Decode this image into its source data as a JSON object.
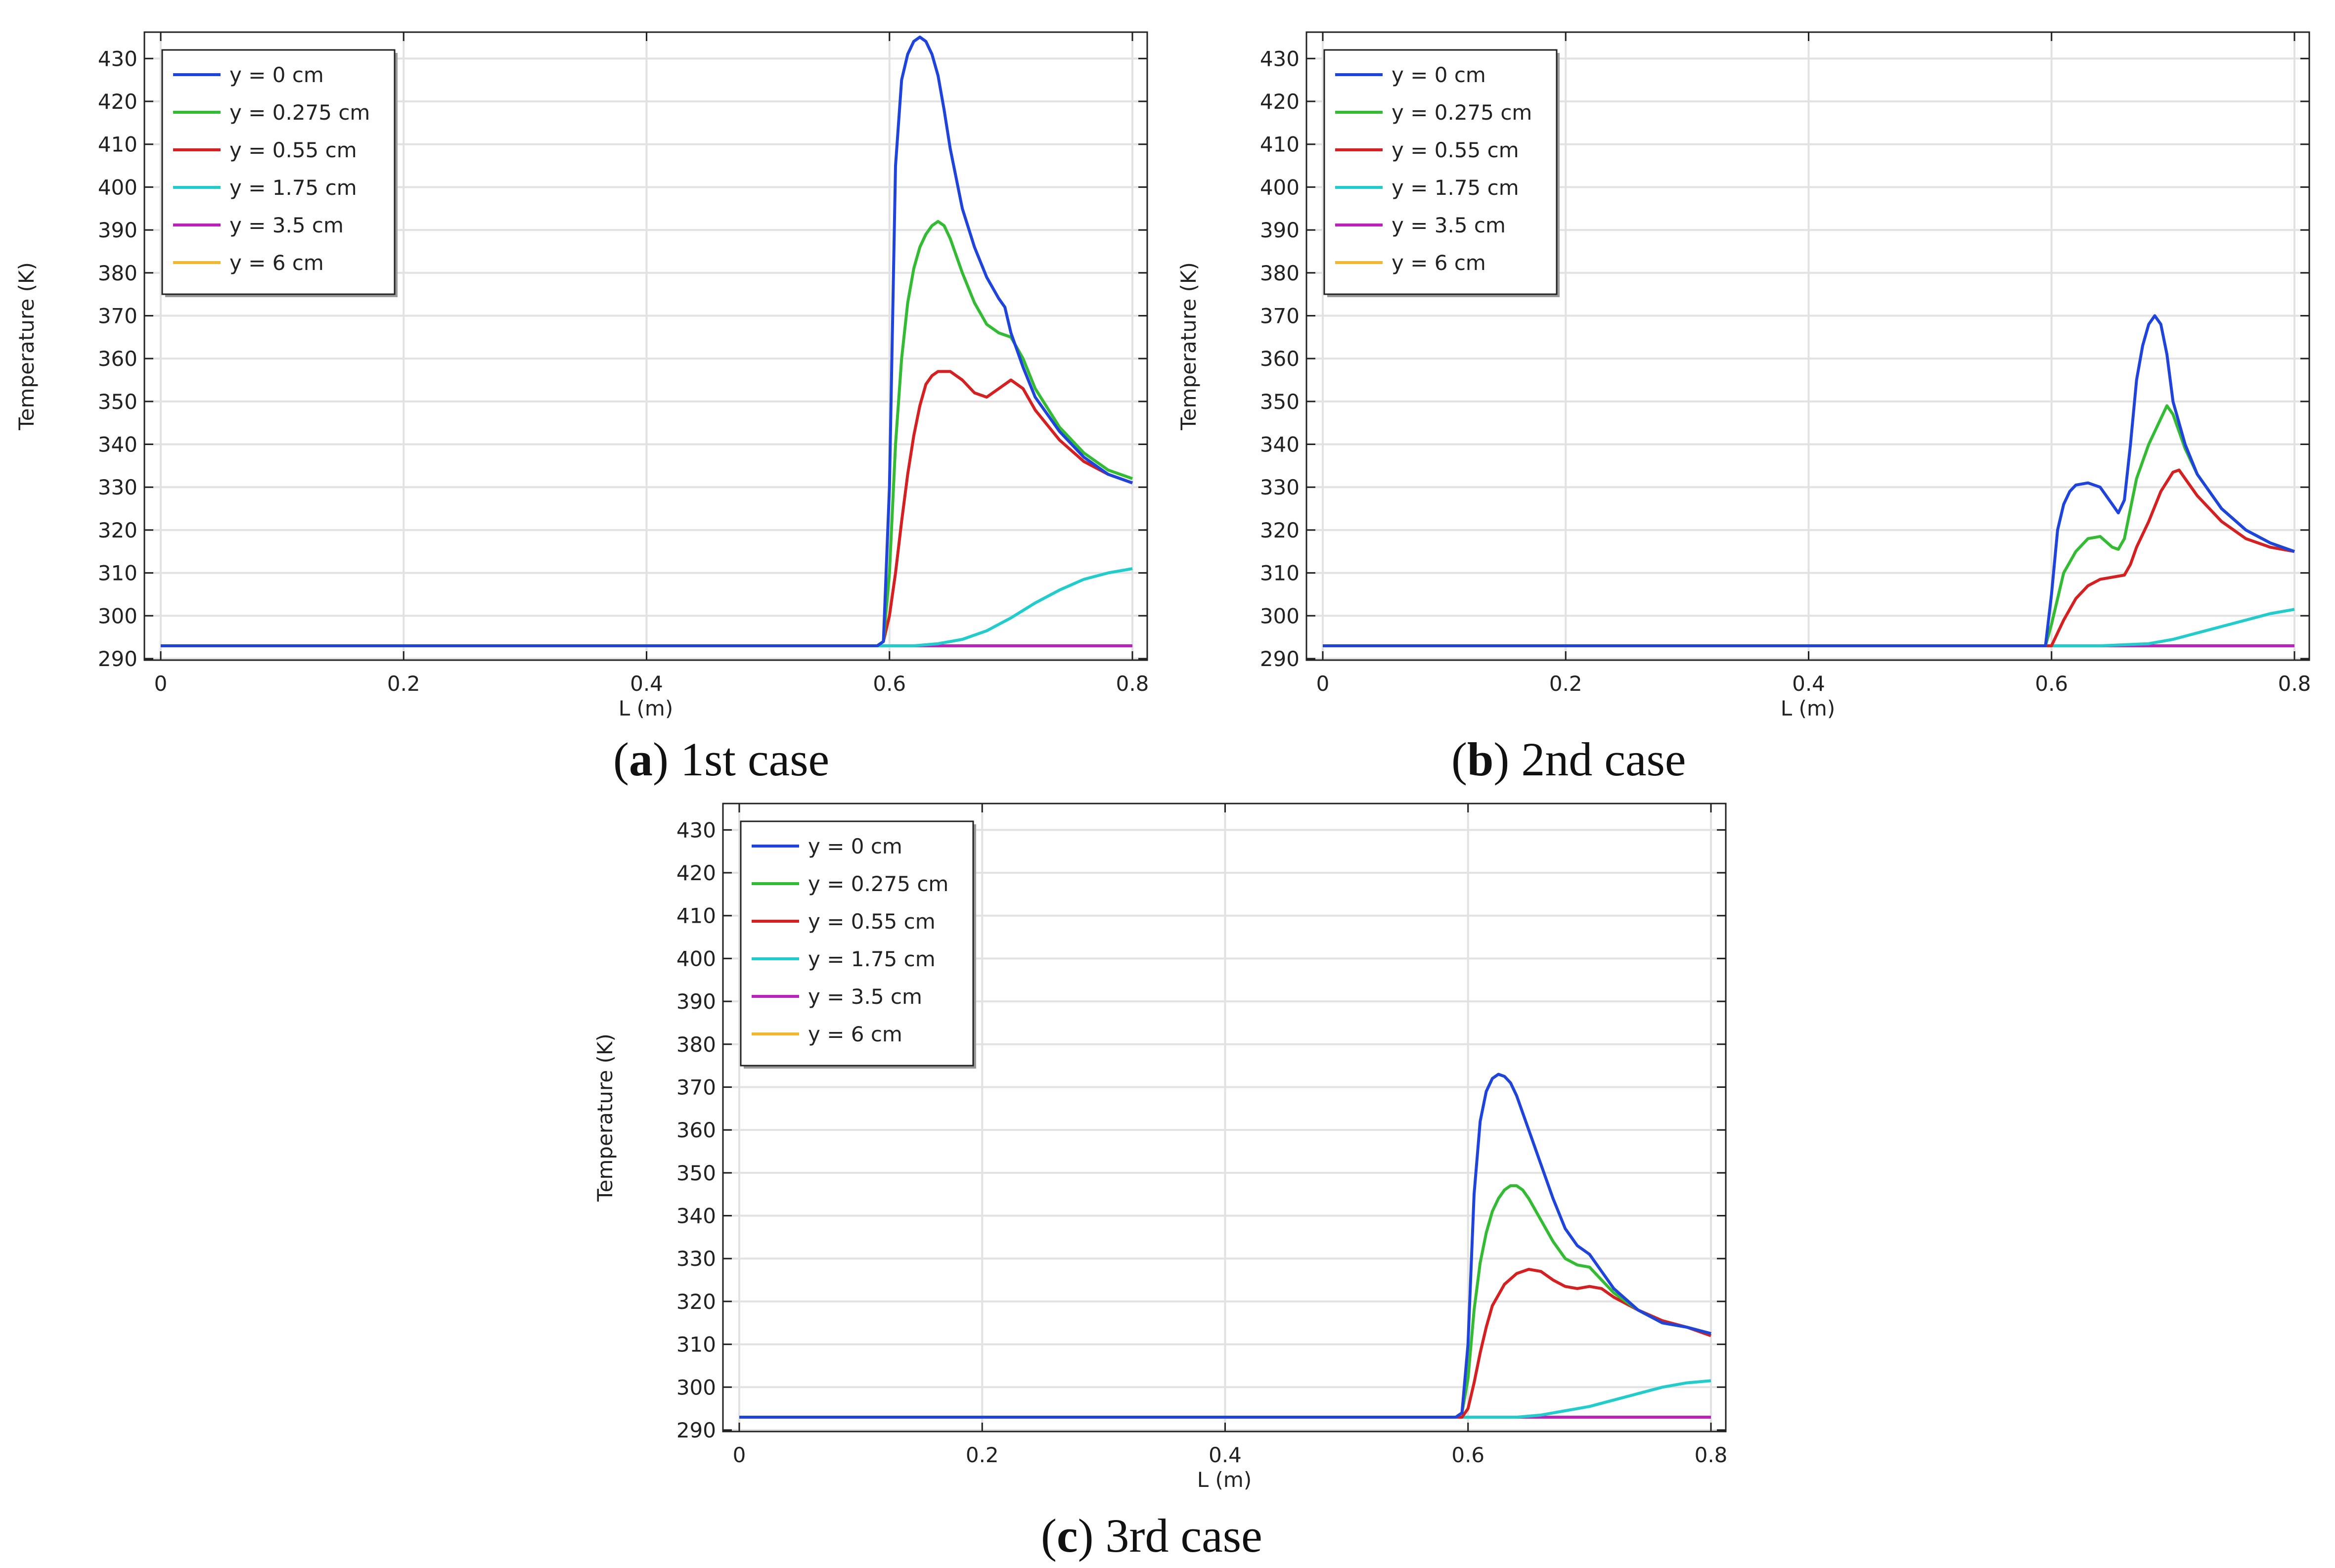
{
  "chart_data": [
    {
      "type": "line",
      "caption": {
        "letter": "a",
        "text": "1st case"
      },
      "xlabel": "L (m)",
      "ylabel": "Temperature (K)",
      "xlim": [
        0,
        0.8
      ],
      "ylim": [
        290,
        435
      ],
      "xticks": [
        0,
        0.2,
        0.4,
        0.6,
        0.8
      ],
      "xtick_labels": [
        "0",
        "0.2",
        "0.4",
        "0.6",
        "0.8"
      ],
      "yticks": [
        290,
        300,
        310,
        320,
        330,
        340,
        350,
        360,
        370,
        380,
        390,
        400,
        410,
        420,
        430
      ],
      "ytick_labels": [
        "290",
        "300",
        "310",
        "320",
        "330",
        "340",
        "350",
        "360",
        "370",
        "380",
        "390",
        "400",
        "410",
        "420",
        "430"
      ],
      "legend_position": "top-left",
      "grid": true,
      "series": [
        {
          "name": "y = 0 cm",
          "color": "#1f44dc",
          "x": [
            0,
            0.59,
            0.595,
            0.6,
            0.605,
            0.61,
            0.615,
            0.62,
            0.625,
            0.63,
            0.635,
            0.64,
            0.645,
            0.65,
            0.66,
            0.67,
            0.68,
            0.69,
            0.695,
            0.7,
            0.71,
            0.72,
            0.74,
            0.76,
            0.78,
            0.8
          ],
          "y": [
            293,
            293,
            294,
            330,
            405,
            425,
            431,
            434,
            435,
            434,
            431,
            426,
            418,
            409,
            395,
            386,
            379,
            374,
            372,
            366,
            358,
            351,
            343,
            337,
            333,
            331
          ]
        },
        {
          "name": "y = 0.275 cm",
          "color": "#33bb33",
          "x": [
            0,
            0.59,
            0.595,
            0.6,
            0.605,
            0.61,
            0.615,
            0.62,
            0.625,
            0.63,
            0.635,
            0.64,
            0.645,
            0.65,
            0.66,
            0.67,
            0.68,
            0.69,
            0.7,
            0.71,
            0.72,
            0.74,
            0.76,
            0.78,
            0.8
          ],
          "y": [
            293,
            293,
            294,
            310,
            340,
            360,
            373,
            381,
            386,
            389,
            391,
            392,
            391,
            388,
            380,
            373,
            368,
            366,
            365,
            360,
            353,
            344,
            338,
            334,
            332
          ]
        },
        {
          "name": "y = 0.55 cm",
          "color": "#d42020",
          "x": [
            0,
            0.59,
            0.595,
            0.6,
            0.605,
            0.61,
            0.615,
            0.62,
            0.625,
            0.63,
            0.635,
            0.64,
            0.645,
            0.65,
            0.66,
            0.67,
            0.68,
            0.69,
            0.7,
            0.71,
            0.72,
            0.74,
            0.76,
            0.78,
            0.8
          ],
          "y": [
            293,
            293,
            294,
            300,
            310,
            322,
            333,
            342,
            349,
            354,
            356,
            357,
            357,
            357,
            355,
            352,
            351,
            353,
            355,
            353,
            348,
            341,
            336,
            333,
            331
          ]
        },
        {
          "name": "y = 1.75 cm",
          "color": "#22cccc",
          "x": [
            0,
            0.62,
            0.64,
            0.66,
            0.68,
            0.7,
            0.72,
            0.74,
            0.76,
            0.78,
            0.8
          ],
          "y": [
            293,
            293,
            293.5,
            294.5,
            296.5,
            299.5,
            303,
            306,
            308.5,
            310,
            311
          ]
        },
        {
          "name": "y = 3.5 cm",
          "color": "#bb22bb",
          "x": [
            0,
            0.8
          ],
          "y": [
            293,
            293
          ]
        },
        {
          "name": "y = 6 cm",
          "color": "#f0b830",
          "x": [
            0,
            0.8
          ],
          "y": [
            293,
            293
          ]
        }
      ]
    },
    {
      "type": "line",
      "caption": {
        "letter": "b",
        "text": "2nd case"
      },
      "xlabel": "L (m)",
      "ylabel": "Temperature (K)",
      "xlim": [
        0,
        0.8
      ],
      "ylim": [
        290,
        435
      ],
      "xticks": [
        0,
        0.2,
        0.4,
        0.6,
        0.8
      ],
      "xtick_labels": [
        "0",
        "0.2",
        "0.4",
        "0.6",
        "0.8"
      ],
      "yticks": [
        290,
        300,
        310,
        320,
        330,
        340,
        350,
        360,
        370,
        380,
        390,
        400,
        410,
        420,
        430
      ],
      "ytick_labels": [
        "290",
        "300",
        "310",
        "320",
        "330",
        "340",
        "350",
        "360",
        "370",
        "380",
        "390",
        "400",
        "410",
        "420",
        "430"
      ],
      "legend_position": "top-left",
      "grid": true,
      "series": [
        {
          "name": "y = 0 cm",
          "color": "#1f44dc",
          "x": [
            0,
            0.595,
            0.6,
            0.605,
            0.61,
            0.615,
            0.62,
            0.63,
            0.64,
            0.65,
            0.655,
            0.66,
            0.665,
            0.67,
            0.675,
            0.68,
            0.685,
            0.69,
            0.695,
            0.7,
            0.71,
            0.72,
            0.74,
            0.76,
            0.78,
            0.8
          ],
          "y": [
            293,
            293,
            305,
            320,
            326,
            329,
            330.5,
            331,
            330,
            326,
            324,
            327,
            340,
            355,
            363,
            368,
            370,
            368,
            361,
            350,
            340,
            333,
            325,
            320,
            317,
            315
          ]
        },
        {
          "name": "y = 0.275 cm",
          "color": "#33bb33",
          "x": [
            0,
            0.595,
            0.6,
            0.61,
            0.62,
            0.63,
            0.64,
            0.65,
            0.655,
            0.66,
            0.665,
            0.67,
            0.68,
            0.69,
            0.695,
            0.7,
            0.71,
            0.72,
            0.74,
            0.76,
            0.78,
            0.8
          ],
          "y": [
            293,
            293,
            298,
            310,
            315,
            318,
            318.5,
            316,
            315.5,
            318,
            325,
            332,
            340,
            346,
            349,
            347,
            339,
            333,
            325,
            320,
            317,
            315
          ]
        },
        {
          "name": "y = 0.55 cm",
          "color": "#d42020",
          "x": [
            0,
            0.6,
            0.61,
            0.62,
            0.63,
            0.64,
            0.65,
            0.66,
            0.665,
            0.67,
            0.68,
            0.69,
            0.7,
            0.705,
            0.71,
            0.72,
            0.74,
            0.76,
            0.78,
            0.8
          ],
          "y": [
            293,
            293,
            299,
            304,
            307,
            308.5,
            309,
            309.5,
            312,
            316,
            322,
            329,
            333.5,
            334,
            332,
            328,
            322,
            318,
            316,
            315
          ]
        },
        {
          "name": "y = 1.75 cm",
          "color": "#22cccc",
          "x": [
            0,
            0.64,
            0.68,
            0.7,
            0.72,
            0.74,
            0.76,
            0.78,
            0.8
          ],
          "y": [
            293,
            293,
            293.5,
            294.5,
            296,
            297.5,
            299,
            300.5,
            301.5
          ]
        },
        {
          "name": "y = 3.5 cm",
          "color": "#bb22bb",
          "x": [
            0,
            0.8
          ],
          "y": [
            293,
            293
          ]
        },
        {
          "name": "y = 6 cm",
          "color": "#f0b830",
          "x": [
            0,
            0.8
          ],
          "y": [
            293,
            293
          ]
        }
      ]
    },
    {
      "type": "line",
      "caption": {
        "letter": "c",
        "text": "3rd case"
      },
      "xlabel": "L (m)",
      "ylabel": "Temperature (K)",
      "xlim": [
        0,
        0.8
      ],
      "ylim": [
        290,
        435
      ],
      "xticks": [
        0,
        0.2,
        0.4,
        0.6,
        0.8
      ],
      "xtick_labels": [
        "0",
        "0.2",
        "0.4",
        "0.6",
        "0.8"
      ],
      "yticks": [
        290,
        300,
        310,
        320,
        330,
        340,
        350,
        360,
        370,
        380,
        390,
        400,
        410,
        420,
        430
      ],
      "ytick_labels": [
        "290",
        "300",
        "310",
        "320",
        "330",
        "340",
        "350",
        "360",
        "370",
        "380",
        "390",
        "400",
        "410",
        "420",
        "430"
      ],
      "legend_position": "top-left",
      "grid": true,
      "series": [
        {
          "name": "y = 0 cm",
          "color": "#1f44dc",
          "x": [
            0,
            0.59,
            0.595,
            0.6,
            0.605,
            0.61,
            0.615,
            0.62,
            0.625,
            0.63,
            0.635,
            0.64,
            0.645,
            0.65,
            0.66,
            0.67,
            0.68,
            0.69,
            0.7,
            0.71,
            0.72,
            0.74,
            0.76,
            0.78,
            0.8
          ],
          "y": [
            293,
            293,
            294,
            310,
            345,
            362,
            369,
            372,
            373,
            372.5,
            371,
            368,
            364,
            360,
            352,
            344,
            337,
            333,
            331,
            327,
            323,
            318,
            315,
            314,
            312.5
          ]
        },
        {
          "name": "y = 0.275 cm",
          "color": "#33bb33",
          "x": [
            0,
            0.59,
            0.595,
            0.6,
            0.605,
            0.61,
            0.615,
            0.62,
            0.625,
            0.63,
            0.635,
            0.64,
            0.645,
            0.65,
            0.66,
            0.67,
            0.68,
            0.69,
            0.7,
            0.71,
            0.72,
            0.74,
            0.76,
            0.78,
            0.8
          ],
          "y": [
            293,
            293,
            294,
            302,
            318,
            329,
            336,
            341,
            344,
            346,
            347,
            347,
            346,
            344,
            339,
            334,
            330,
            328.5,
            328,
            325,
            322,
            318,
            315,
            314,
            312.5
          ]
        },
        {
          "name": "y = 0.55 cm",
          "color": "#d42020",
          "x": [
            0,
            0.595,
            0.6,
            0.605,
            0.61,
            0.615,
            0.62,
            0.63,
            0.64,
            0.65,
            0.66,
            0.67,
            0.68,
            0.69,
            0.7,
            0.71,
            0.72,
            0.74,
            0.76,
            0.78,
            0.8
          ],
          "y": [
            293,
            293,
            295,
            301,
            308,
            314,
            319,
            324,
            326.5,
            327.5,
            327,
            325,
            323.5,
            323,
            323.5,
            323,
            321,
            318,
            315.5,
            314,
            312
          ]
        },
        {
          "name": "y = 1.75 cm",
          "color": "#22cccc",
          "x": [
            0,
            0.64,
            0.66,
            0.68,
            0.7,
            0.72,
            0.74,
            0.76,
            0.78,
            0.8
          ],
          "y": [
            293,
            293,
            293.5,
            294.5,
            295.5,
            297,
            298.5,
            300,
            301,
            301.5
          ]
        },
        {
          "name": "y = 3.5 cm",
          "color": "#bb22bb",
          "x": [
            0,
            0.8
          ],
          "y": [
            293,
            293
          ]
        },
        {
          "name": "y = 6 cm",
          "color": "#f0b830",
          "x": [
            0,
            0.8
          ],
          "y": [
            293,
            293
          ]
        }
      ]
    }
  ]
}
